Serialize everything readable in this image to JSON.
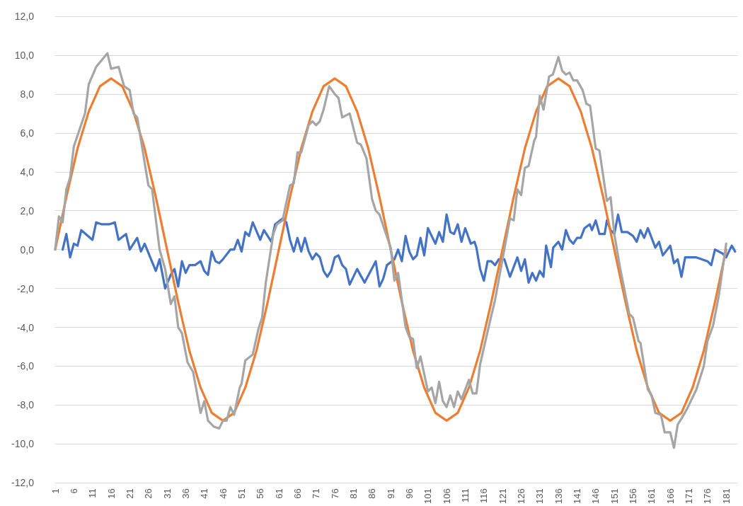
{
  "chart_data": {
    "type": "line",
    "xlim": [
      1,
      184
    ],
    "ylim": [
      -12,
      12
    ],
    "yticks": [
      {
        "value": -12,
        "label": "-12,0"
      },
      {
        "value": -10,
        "label": "-10,0"
      },
      {
        "value": -8,
        "label": "-8,0"
      },
      {
        "value": -6,
        "label": "-6,0"
      },
      {
        "value": -4,
        "label": "-4,0"
      },
      {
        "value": -2,
        "label": "-2,0"
      },
      {
        "value": 0,
        "label": "0,0"
      },
      {
        "value": 2,
        "label": "2,0"
      },
      {
        "value": 4,
        "label": "4,0"
      },
      {
        "value": 6,
        "label": "6,0"
      },
      {
        "value": 8,
        "label": "8,0"
      },
      {
        "value": 10,
        "label": "10,0"
      },
      {
        "value": 12,
        "label": "12,0"
      }
    ],
    "xticks": [
      1,
      6,
      11,
      16,
      21,
      26,
      31,
      36,
      41,
      46,
      51,
      56,
      61,
      66,
      71,
      76,
      81,
      86,
      91,
      96,
      101,
      106,
      111,
      116,
      121,
      126,
      131,
      136,
      141,
      146,
      151,
      156,
      161,
      166,
      171,
      176,
      181
    ],
    "grid": "y",
    "marker": "none",
    "line_style": "solid",
    "series": [
      {
        "color": "#4472c4",
        "x": [
          3,
          4,
          5,
          6,
          7,
          8,
          11,
          12,
          13.5,
          15.5,
          17,
          18,
          20,
          21,
          23,
          24,
          25,
          28,
          29,
          30.5,
          32,
          33,
          34,
          35,
          36,
          37,
          38.5,
          40,
          41,
          42,
          43,
          44,
          45,
          46,
          48,
          49,
          50,
          51,
          52,
          53,
          54,
          56,
          57,
          59,
          60,
          62,
          63,
          64,
          65,
          66,
          67,
          68,
          69,
          70,
          71,
          72,
          73,
          74,
          75,
          76,
          77,
          78,
          79,
          80,
          82,
          84,
          87,
          88,
          89,
          90,
          92,
          93,
          94,
          95,
          96,
          97,
          98,
          99,
          100,
          101,
          103,
          104,
          105,
          106,
          107,
          108,
          109,
          110,
          111,
          112.5,
          113.5,
          114,
          115,
          116,
          117,
          118,
          119,
          120,
          121.5,
          123,
          125,
          126,
          127,
          128,
          129,
          130,
          131,
          132,
          132.7,
          134,
          134.6,
          136,
          137,
          138,
          139,
          140,
          141,
          142,
          143,
          144.4,
          145,
          146,
          147,
          148.4,
          149,
          150,
          151,
          152,
          153,
          154.5,
          156,
          157,
          158,
          159,
          160,
          162,
          163,
          164,
          166,
          167,
          168,
          169,
          170,
          171.5,
          173,
          176,
          177,
          178,
          180,
          181,
          182.5,
          183.4
        ],
        "values": [
          0,
          0.8,
          -0.4,
          0.3,
          0.2,
          1.0,
          0.5,
          1.4,
          1.3,
          1.3,
          1.4,
          0.5,
          0.8,
          0,
          0.6,
          -0.1,
          0.3,
          -1.1,
          -0.5,
          -2.0,
          -1.3,
          -1.0,
          -1.9,
          -0.6,
          -1.2,
          -0.8,
          -0.8,
          -0.6,
          -1.1,
          -1.3,
          -0.1,
          -0.6,
          -0.7,
          -0.5,
          0,
          0,
          0.5,
          -0.1,
          0.9,
          0.7,
          1.4,
          0.5,
          1.0,
          0.4,
          1.3,
          1.6,
          1.4,
          0.5,
          -0.1,
          0.6,
          -0.1,
          0.6,
          -0.1,
          -0.5,
          -0.2,
          -0.4,
          -1.1,
          -1.4,
          -1.1,
          -0.4,
          -0.3,
          -0.8,
          -1.0,
          -1.8,
          -1.0,
          -1.7,
          -0.6,
          -1.9,
          -1.5,
          -0.8,
          -0.5,
          0,
          -0.6,
          0.7,
          -0.1,
          -0.5,
          -0.3,
          0.6,
          -0.3,
          1.1,
          0.3,
          0.9,
          0.4,
          1.8,
          0.9,
          0.8,
          1.3,
          0.4,
          1.1,
          0.3,
          0.4,
          0.1,
          -1.0,
          -1.6,
          -0.6,
          -0.6,
          -0.8,
          -0.5,
          -0.5,
          -1.4,
          -0.4,
          -1.1,
          -0.5,
          -1.7,
          -1.2,
          -1.6,
          -1.1,
          -1.4,
          0.2,
          -0.9,
          0.1,
          0.4,
          0,
          1.0,
          0.5,
          0.3,
          0.6,
          0.6,
          1.1,
          1.3,
          1.0,
          1.5,
          0.8,
          0.8,
          1.5,
          1.0,
          0.8,
          1.8,
          0.9,
          0.9,
          0.7,
          0.4,
          1.0,
          0.6,
          1.1,
          0.1,
          0.4,
          -0.3,
          0.2,
          -0.7,
          -0.5,
          -1.4,
          -0.4,
          -0.4,
          -0.4,
          -0.6,
          -0.8,
          0,
          -0.2,
          -0.4,
          0.2,
          -0.1
        ]
      },
      {
        "color": "#ed7d31",
        "x": [
          1,
          4,
          7,
          10,
          13,
          16,
          19,
          22,
          25,
          28,
          31,
          34,
          37,
          40,
          43,
          46,
          49,
          52,
          55,
          58,
          61,
          64,
          67,
          70,
          73,
          76,
          79,
          82,
          85,
          88,
          91,
          94,
          97,
          100,
          103,
          106,
          109,
          112,
          115,
          118,
          121,
          124,
          127,
          130,
          133,
          136,
          139,
          142,
          145,
          148,
          151,
          154,
          157,
          160,
          163,
          166,
          169,
          172,
          175,
          178,
          181
        ],
        "values": [
          0,
          2.7,
          5.2,
          7.1,
          8.4,
          8.8,
          8.4,
          7.1,
          5.2,
          2.7,
          0,
          -2.7,
          -5.2,
          -7.1,
          -8.4,
          -8.8,
          -8.4,
          -7.1,
          -5.2,
          -2.7,
          0,
          2.7,
          5.2,
          7.1,
          8.4,
          8.8,
          8.4,
          7.1,
          5.2,
          2.7,
          0,
          -2.7,
          -5.2,
          -7.1,
          -8.4,
          -8.8,
          -8.4,
          -7.1,
          -5.2,
          -2.7,
          0,
          2.7,
          5.2,
          7.1,
          8.4,
          8.8,
          8.4,
          7.1,
          5.2,
          2.7,
          0,
          -2.7,
          -5.2,
          -7.1,
          -8.4,
          -8.8,
          -8.4,
          -7.1,
          -5.2,
          -2.7,
          0
        ]
      },
      {
        "color": "#a5a5a5",
        "x": [
          1,
          2,
          3,
          4,
          5,
          6,
          9,
          10,
          12,
          15,
          16,
          18,
          19.5,
          21,
          22,
          23,
          26,
          27,
          29,
          30.5,
          32,
          33,
          34,
          35,
          36.5,
          38,
          40,
          41,
          42,
          43.5,
          45,
          46,
          47,
          48,
          49,
          50.5,
          51,
          52,
          54,
          55.5,
          56.5,
          57.5,
          59.5,
          60.5,
          62,
          64,
          65,
          66,
          67,
          69,
          70,
          71,
          72,
          73,
          74.5,
          76,
          77,
          78,
          80,
          82,
          83,
          84.5,
          86,
          87,
          88,
          91,
          92,
          93,
          95,
          96,
          97,
          98,
          99,
          101,
          102,
          103,
          104,
          105,
          106,
          107,
          108,
          109,
          110,
          112,
          113,
          114,
          115,
          117.5,
          119,
          121,
          123,
          124,
          125,
          126,
          127,
          128,
          129.5,
          130,
          131,
          132,
          133.5,
          134.5,
          136,
          137,
          138,
          139,
          140,
          141,
          142.5,
          143.5,
          144.5,
          146,
          147,
          149,
          150,
          151,
          152.5,
          155,
          156,
          157.5,
          158,
          160,
          161,
          162,
          163.5,
          164.5,
          166,
          167,
          168,
          169,
          170.5,
          173,
          175,
          176,
          177.5,
          179,
          181
        ],
        "values": [
          0,
          1.7,
          1.4,
          3.1,
          3.7,
          5.3,
          7.0,
          8.5,
          9.4,
          10.1,
          9.3,
          9.4,
          8.4,
          8.2,
          7.0,
          6.8,
          3.3,
          3.1,
          0,
          -1.0,
          -2.8,
          -2.4,
          -4.0,
          -4.3,
          -5.8,
          -6.3,
          -8.4,
          -7.8,
          -8.8,
          -9.1,
          -9.2,
          -8.8,
          -8.8,
          -8.1,
          -8.5,
          -7.1,
          -6.9,
          -5.7,
          -5.4,
          -4.1,
          -3.5,
          -1.7,
          0.8,
          1.3,
          1.5,
          3.3,
          3.4,
          5.0,
          5.0,
          6.4,
          6.6,
          6.4,
          6.6,
          7.2,
          8.4,
          8.0,
          7.8,
          6.8,
          7.0,
          5.5,
          5.4,
          4.7,
          2.6,
          2.0,
          1.8,
          0.1,
          -1.6,
          -1.2,
          -4.0,
          -4.5,
          -4.6,
          -6.1,
          -5.5,
          -7.3,
          -7.1,
          -7.9,
          -6.8,
          -7.8,
          -8.1,
          -7.5,
          -8.1,
          -7.3,
          -7.7,
          -6.7,
          -7.4,
          -7.4,
          -5.9,
          -3.8,
          -2.6,
          -0.5,
          1.6,
          1.5,
          3.1,
          2.8,
          4.2,
          4.3,
          5.6,
          5.8,
          7.9,
          7.2,
          8.9,
          9.0,
          9.9,
          9.2,
          9.0,
          9.1,
          8.7,
          8.7,
          8.2,
          7.5,
          7.4,
          5.2,
          5.1,
          2.5,
          2.7,
          0.8,
          -0.9,
          -3.3,
          -3.5,
          -4.7,
          -4.8,
          -7.2,
          -7.5,
          -8.4,
          -8.5,
          -9.4,
          -9.4,
          -10.2,
          -9.0,
          -8.7,
          -8.2,
          -7.2,
          -6.0,
          -4.7,
          -3.9,
          -2.4,
          0.3
        ]
      }
    ]
  }
}
